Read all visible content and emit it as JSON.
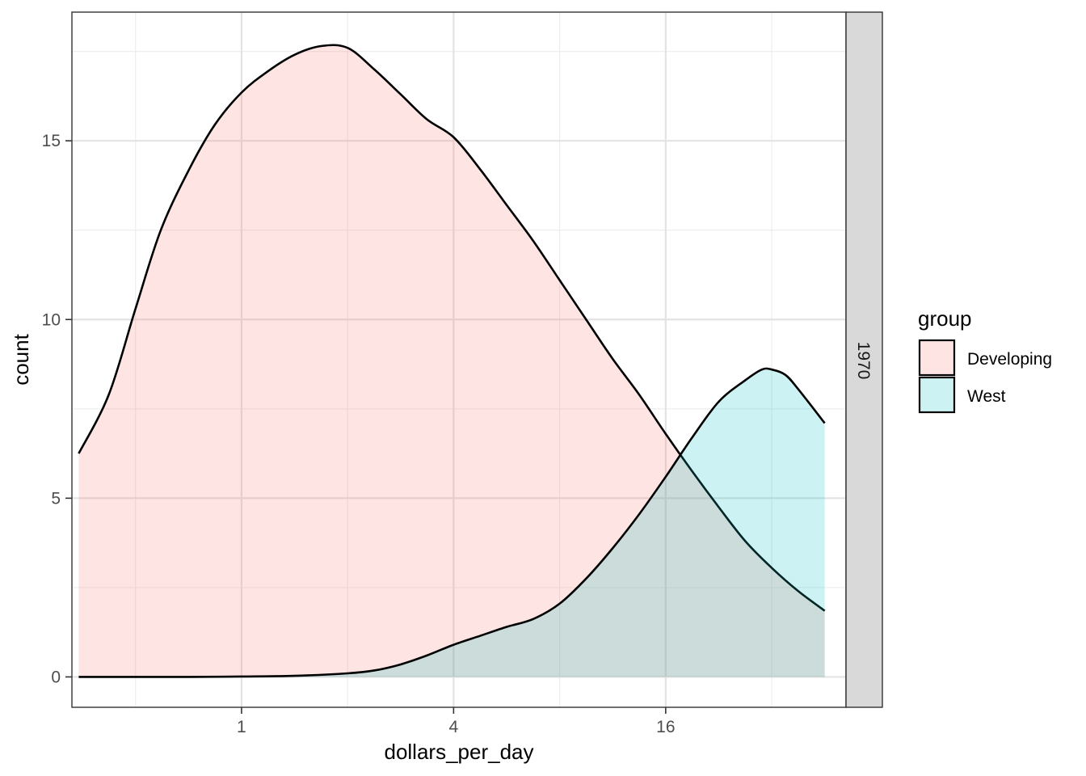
{
  "chart_data": {
    "type": "area",
    "facet": "1970",
    "xlabel": "dollars_per_day",
    "ylabel": "count",
    "x_scale": "log2",
    "xlim": [
      0.33,
      52
    ],
    "ylim": [
      -0.85,
      18.6
    ],
    "x_ticks": [
      {
        "value": 1,
        "label": "1"
      },
      {
        "value": 4,
        "label": "4"
      },
      {
        "value": 16,
        "label": "16"
      }
    ],
    "x_minor_ticks": [
      0.5,
      2,
      8,
      32
    ],
    "y_ticks": [
      {
        "value": 0,
        "label": "0"
      },
      {
        "value": 5,
        "label": "5"
      },
      {
        "value": 10,
        "label": "10"
      },
      {
        "value": 15,
        "label": "15"
      }
    ],
    "y_minor_ticks": [
      2.5,
      7.5,
      12.5,
      17.5
    ],
    "grid": true,
    "legend": {
      "title": "group",
      "placement": "right",
      "entries": [
        {
          "label": "Developing",
          "color": "#F8766D"
        },
        {
          "label": "West",
          "color": "#00BFC4"
        }
      ]
    },
    "series": [
      {
        "name": "Developing",
        "color": "#F8766D",
        "x": [
          0.345,
          0.42,
          0.5,
          0.59,
          0.71,
          0.84,
          1,
          1.19,
          1.41,
          1.68,
          2,
          2.38,
          2.83,
          3.36,
          4,
          4.76,
          5.66,
          6.73,
          8,
          9.51,
          11.31,
          13.45,
          16,
          19.03,
          22.63,
          26.91,
          32,
          38.05,
          45.25
        ],
        "values": [
          6.25,
          7.9,
          10.3,
          12.5,
          14.2,
          15.45,
          16.35,
          16.95,
          17.4,
          17.65,
          17.6,
          17.0,
          16.3,
          15.6,
          15.1,
          14.2,
          13.2,
          12.2,
          11.1,
          10.0,
          8.9,
          7.9,
          6.8,
          5.75,
          4.75,
          3.8,
          3.05,
          2.4,
          1.85
        ]
      },
      {
        "name": "West",
        "color": "#00BFC4",
        "x": [
          0.345,
          0.5,
          0.71,
          1,
          1.41,
          2,
          2.38,
          2.83,
          3.36,
          4,
          4.76,
          5.66,
          6.73,
          8,
          9.51,
          11.31,
          13.45,
          16,
          19.03,
          22.63,
          26.91,
          30,
          32,
          35,
          38.05,
          45.25
        ],
        "values": [
          0,
          0,
          0,
          0.01,
          0.03,
          0.1,
          0.18,
          0.35,
          0.6,
          0.9,
          1.15,
          1.4,
          1.62,
          2.05,
          2.75,
          3.6,
          4.55,
          5.6,
          6.7,
          7.7,
          8.3,
          8.6,
          8.6,
          8.45,
          8.05,
          7.1
        ]
      }
    ]
  }
}
